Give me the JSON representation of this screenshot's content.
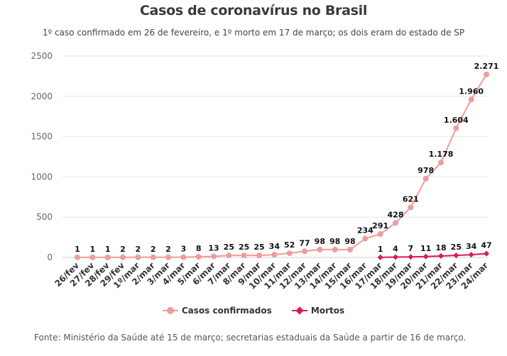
{
  "title": "Casos de coronavírus no Brasil",
  "subtitle": "1º caso confirmado em 26 de fevereiro, e 1º morto em 17 de março; os dois eram do estado de SP",
  "source": "Fonte: Ministério da Saúde até 15 de março; secretarias estaduais da Saúde a partir de 16 de março.",
  "colors": {
    "cases": "#ee9c9c",
    "deaths": "#d6185e",
    "grid": "#e6e6e6",
    "axis": "#666666"
  },
  "chart_data": {
    "type": "line",
    "categories": [
      "26/fev",
      "27/fev",
      "28/fev",
      "29/fev",
      "1º/mar",
      "2/mar",
      "3/mar",
      "4/mar",
      "5/mar",
      "6/mar",
      "7/mar",
      "8/mar",
      "9/mar",
      "10/mar",
      "11/mar",
      "12/mar",
      "13/mar",
      "14/mar",
      "15/mar",
      "16/mar",
      "17/mar",
      "18/mar",
      "19/mar",
      "20/mar",
      "21/mar",
      "22/mar",
      "23/mar",
      "24/mar"
    ],
    "ylim": [
      0,
      2500
    ],
    "yticks": [
      "0",
      "500",
      "1000",
      "1500",
      "2000",
      "2500"
    ],
    "ytick_values": [
      0,
      500,
      1000,
      1500,
      2000,
      2500
    ],
    "grid": true,
    "legend_position": "bottom",
    "series": [
      {
        "name": "Casos confirmados",
        "values": [
          1,
          1,
          1,
          2,
          2,
          2,
          2,
          3,
          8,
          13,
          25,
          25,
          25,
          34,
          52,
          77,
          98,
          98,
          98,
          234,
          291,
          428,
          621,
          978,
          1178,
          1604,
          1960,
          2271
        ],
        "labels": [
          "1",
          "1",
          "1",
          "2",
          "2",
          "2",
          "2",
          "3",
          "8",
          "13",
          "25",
          "25",
          "25",
          "34",
          "52",
          "77",
          "98",
          "98",
          "98",
          "234",
          "291",
          "428",
          "621",
          "978",
          "1.178",
          "1.604",
          "1.960",
          "2.271"
        ]
      },
      {
        "name": "Mortos",
        "values": [
          null,
          null,
          null,
          null,
          null,
          null,
          null,
          null,
          null,
          null,
          null,
          null,
          null,
          null,
          null,
          null,
          null,
          null,
          null,
          null,
          1,
          4,
          7,
          11,
          18,
          25,
          34,
          47
        ],
        "labels": [
          null,
          null,
          null,
          null,
          null,
          null,
          null,
          null,
          null,
          null,
          null,
          null,
          null,
          null,
          null,
          null,
          null,
          null,
          null,
          null,
          "1",
          "4",
          "7",
          "11",
          "18",
          "25",
          "34",
          "47"
        ]
      }
    ]
  }
}
